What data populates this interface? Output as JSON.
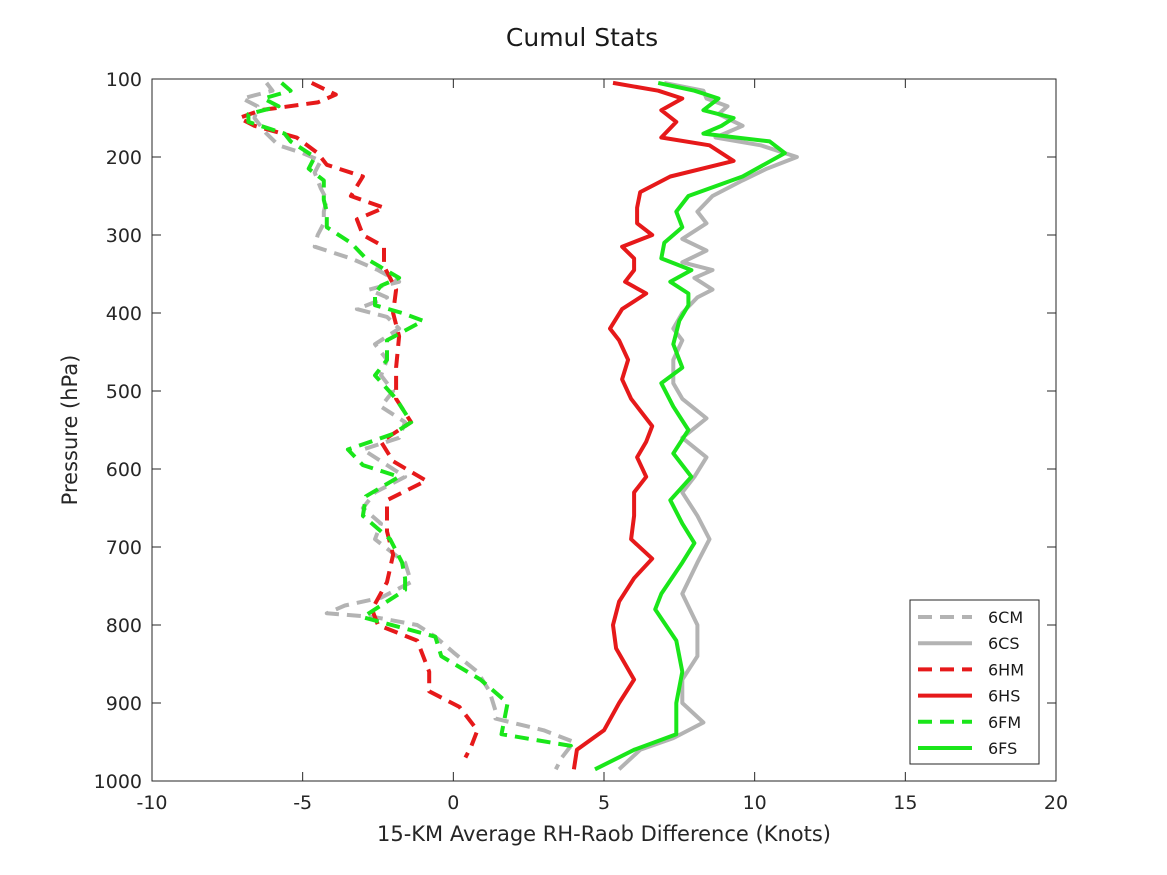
{
  "chart_data": {
    "type": "line",
    "title": "Cumul Stats",
    "xlabel": "15-KM Average RH-Raob Difference (Knots)",
    "ylabel": "Pressure (hPa)",
    "xlim": [
      -10,
      20
    ],
    "ylim": [
      100,
      1000
    ],
    "y_reversed": true,
    "xticks": [
      -10,
      -5,
      0,
      5,
      10,
      15,
      20
    ],
    "yticks": [
      100,
      200,
      300,
      400,
      500,
      600,
      700,
      800,
      900,
      1000
    ],
    "grid": false,
    "legend_position": "bottom-right",
    "series": [
      {
        "name": "6CM",
        "color": "#b3b3b3",
        "dashed": true,
        "points": [
          [
            -6.2,
            105
          ],
          [
            -6.0,
            115
          ],
          [
            -7.0,
            125
          ],
          [
            -6.5,
            135
          ],
          [
            -6.6,
            150
          ],
          [
            -6.2,
            170
          ],
          [
            -5.8,
            185
          ],
          [
            -5.0,
            195
          ],
          [
            -4.4,
            205
          ],
          [
            -4.6,
            220
          ],
          [
            -4.4,
            240
          ],
          [
            -4.2,
            255
          ],
          [
            -4.3,
            270
          ],
          [
            -4.3,
            285
          ],
          [
            -4.5,
            300
          ],
          [
            -4.6,
            315
          ],
          [
            -3.4,
            330
          ],
          [
            -2.5,
            345
          ],
          [
            -1.8,
            360
          ],
          [
            -2.8,
            370
          ],
          [
            -2.2,
            380
          ],
          [
            -3.2,
            395
          ],
          [
            -2.2,
            405
          ],
          [
            -1.8,
            420
          ],
          [
            -2.6,
            440
          ],
          [
            -2.2,
            460
          ],
          [
            -2.4,
            480
          ],
          [
            -2.0,
            500
          ],
          [
            -2.4,
            520
          ],
          [
            -1.6,
            540
          ],
          [
            -1.8,
            560
          ],
          [
            -3.0,
            575
          ],
          [
            -2.4,
            590
          ],
          [
            -1.6,
            610
          ],
          [
            -2.6,
            630
          ],
          [
            -3.0,
            650
          ],
          [
            -2.4,
            670
          ],
          [
            -2.6,
            690
          ],
          [
            -1.6,
            720
          ],
          [
            -1.4,
            745
          ],
          [
            -2.4,
            765
          ],
          [
            -3.6,
            775
          ],
          [
            -4.2,
            785
          ],
          [
            -2.6,
            790
          ],
          [
            -1.2,
            800
          ],
          [
            -0.6,
            815
          ],
          [
            0,
            835
          ],
          [
            0.8,
            860
          ],
          [
            1.2,
            885
          ],
          [
            1.4,
            910
          ],
          [
            1.4,
            920
          ],
          [
            3.0,
            935
          ],
          [
            4.0,
            950
          ],
          [
            3.6,
            970
          ],
          [
            3.4,
            985
          ]
        ]
      },
      {
        "name": "6CS",
        "color": "#b3b3b3",
        "dashed": false,
        "points": [
          [
            7.0,
            105
          ],
          [
            8.3,
            115
          ],
          [
            8.4,
            125
          ],
          [
            9.1,
            135
          ],
          [
            8.8,
            145
          ],
          [
            9.6,
            160
          ],
          [
            8.7,
            175
          ],
          [
            10.2,
            185
          ],
          [
            11.4,
            200
          ],
          [
            10.4,
            215
          ],
          [
            9.6,
            230
          ],
          [
            8.6,
            250
          ],
          [
            8.1,
            270
          ],
          [
            8.4,
            285
          ],
          [
            7.6,
            305
          ],
          [
            8.4,
            320
          ],
          [
            7.6,
            335
          ],
          [
            8.6,
            345
          ],
          [
            8.0,
            355
          ],
          [
            8.6,
            370
          ],
          [
            8.1,
            380
          ],
          [
            7.6,
            400
          ],
          [
            7.3,
            420
          ],
          [
            7.6,
            435
          ],
          [
            7.3,
            460
          ],
          [
            7.3,
            490
          ],
          [
            7.6,
            510
          ],
          [
            8.4,
            535
          ],
          [
            7.6,
            560
          ],
          [
            8.4,
            585
          ],
          [
            8.0,
            610
          ],
          [
            7.6,
            630
          ],
          [
            8.1,
            660
          ],
          [
            8.5,
            690
          ],
          [
            8.1,
            720
          ],
          [
            7.6,
            760
          ],
          [
            8.1,
            800
          ],
          [
            8.1,
            840
          ],
          [
            7.6,
            870
          ],
          [
            7.6,
            900
          ],
          [
            8.3,
            925
          ],
          [
            7.3,
            945
          ],
          [
            6.2,
            960
          ],
          [
            5.5,
            985
          ]
        ]
      },
      {
        "name": "6HM",
        "color": "#e6191a",
        "dashed": true,
        "points": [
          [
            -4.7,
            105
          ],
          [
            -3.9,
            120
          ],
          [
            -4.5,
            130
          ],
          [
            -6.4,
            140
          ],
          [
            -7.1,
            150
          ],
          [
            -6.6,
            160
          ],
          [
            -5.2,
            175
          ],
          [
            -4.5,
            195
          ],
          [
            -4.2,
            210
          ],
          [
            -3.0,
            225
          ],
          [
            -3.4,
            250
          ],
          [
            -2.3,
            265
          ],
          [
            -3.2,
            280
          ],
          [
            -3.0,
            300
          ],
          [
            -2.3,
            315
          ],
          [
            -2.3,
            340
          ],
          [
            -1.9,
            370
          ],
          [
            -2.0,
            400
          ],
          [
            -1.8,
            430
          ],
          [
            -1.9,
            470
          ],
          [
            -1.9,
            510
          ],
          [
            -1.4,
            540
          ],
          [
            -2.4,
            565
          ],
          [
            -2.0,
            590
          ],
          [
            -0.9,
            615
          ],
          [
            -2.2,
            640
          ],
          [
            -2.2,
            680
          ],
          [
            -2.0,
            710
          ],
          [
            -2.2,
            745
          ],
          [
            -2.7,
            780
          ],
          [
            -2.5,
            800
          ],
          [
            -1.2,
            820
          ],
          [
            -0.8,
            860
          ],
          [
            -0.8,
            885
          ],
          [
            0.2,
            905
          ],
          [
            0.8,
            935
          ],
          [
            0.6,
            955
          ],
          [
            0.4,
            970
          ]
        ]
      },
      {
        "name": "6HS",
        "color": "#e6191a",
        "dashed": false,
        "points": [
          [
            5.3,
            105
          ],
          [
            6.8,
            115
          ],
          [
            7.6,
            125
          ],
          [
            6.9,
            140
          ],
          [
            7.4,
            155
          ],
          [
            6.9,
            175
          ],
          [
            8.5,
            185
          ],
          [
            9.3,
            205
          ],
          [
            7.2,
            225
          ],
          [
            6.2,
            245
          ],
          [
            6.1,
            265
          ],
          [
            6.1,
            285
          ],
          [
            6.6,
            300
          ],
          [
            5.6,
            315
          ],
          [
            6.0,
            330
          ],
          [
            6.0,
            345
          ],
          [
            5.7,
            360
          ],
          [
            6.4,
            375
          ],
          [
            5.6,
            395
          ],
          [
            5.2,
            420
          ],
          [
            5.5,
            435
          ],
          [
            5.8,
            460
          ],
          [
            5.6,
            485
          ],
          [
            5.9,
            510
          ],
          [
            6.6,
            545
          ],
          [
            6.4,
            565
          ],
          [
            6.1,
            585
          ],
          [
            6.4,
            610
          ],
          [
            6.0,
            630
          ],
          [
            6.0,
            660
          ],
          [
            5.9,
            690
          ],
          [
            6.6,
            715
          ],
          [
            6.0,
            740
          ],
          [
            5.5,
            770
          ],
          [
            5.3,
            800
          ],
          [
            5.4,
            830
          ],
          [
            6.0,
            870
          ],
          [
            5.5,
            900
          ],
          [
            5.0,
            935
          ],
          [
            4.1,
            960
          ],
          [
            4.0,
            985
          ]
        ]
      },
      {
        "name": "6FM",
        "color": "#1ae61a",
        "dashed": true,
        "points": [
          [
            -5.7,
            105
          ],
          [
            -5.4,
            115
          ],
          [
            -6.3,
            125
          ],
          [
            -5.8,
            135
          ],
          [
            -6.8,
            145
          ],
          [
            -6.8,
            155
          ],
          [
            -5.6,
            170
          ],
          [
            -5.4,
            180
          ],
          [
            -4.6,
            200
          ],
          [
            -4.8,
            215
          ],
          [
            -4.3,
            230
          ],
          [
            -4.3,
            255
          ],
          [
            -4.2,
            270
          ],
          [
            -4.2,
            290
          ],
          [
            -3.4,
            310
          ],
          [
            -2.9,
            330
          ],
          [
            -1.8,
            355
          ],
          [
            -2.4,
            365
          ],
          [
            -2.6,
            375
          ],
          [
            -2.6,
            390
          ],
          [
            -1.7,
            400
          ],
          [
            -1.0,
            410
          ],
          [
            -2.2,
            435
          ],
          [
            -2.2,
            460
          ],
          [
            -2.6,
            480
          ],
          [
            -1.9,
            510
          ],
          [
            -1.4,
            540
          ],
          [
            -2.0,
            555
          ],
          [
            -3.5,
            575
          ],
          [
            -3.0,
            595
          ],
          [
            -1.8,
            610
          ],
          [
            -2.9,
            635
          ],
          [
            -3.0,
            660
          ],
          [
            -2.1,
            690
          ],
          [
            -1.7,
            720
          ],
          [
            -1.6,
            740
          ],
          [
            -1.6,
            755
          ],
          [
            -2.2,
            770
          ],
          [
            -3.0,
            790
          ],
          [
            -0.6,
            815
          ],
          [
            -0.4,
            840
          ],
          [
            0.9,
            870
          ],
          [
            1.8,
            900
          ],
          [
            1.6,
            940
          ],
          [
            3.9,
            955
          ],
          [
            4.0,
            965
          ]
        ]
      },
      {
        "name": "6FS",
        "color": "#1ae61a",
        "dashed": false,
        "points": [
          [
            6.8,
            105
          ],
          [
            8.0,
            115
          ],
          [
            8.8,
            125
          ],
          [
            8.3,
            140
          ],
          [
            9.3,
            150
          ],
          [
            8.9,
            160
          ],
          [
            8.3,
            170
          ],
          [
            10.5,
            180
          ],
          [
            11.0,
            195
          ],
          [
            9.6,
            225
          ],
          [
            7.8,
            250
          ],
          [
            7.4,
            270
          ],
          [
            7.6,
            290
          ],
          [
            7.0,
            310
          ],
          [
            6.9,
            330
          ],
          [
            7.9,
            345
          ],
          [
            7.2,
            360
          ],
          [
            7.8,
            375
          ],
          [
            7.8,
            390
          ],
          [
            7.5,
            410
          ],
          [
            7.3,
            440
          ],
          [
            7.6,
            470
          ],
          [
            6.9,
            490
          ],
          [
            7.3,
            520
          ],
          [
            7.8,
            550
          ],
          [
            7.3,
            580
          ],
          [
            7.9,
            610
          ],
          [
            7.2,
            640
          ],
          [
            7.6,
            670
          ],
          [
            8.0,
            695
          ],
          [
            7.6,
            720
          ],
          [
            6.9,
            760
          ],
          [
            6.7,
            780
          ],
          [
            7.4,
            820
          ],
          [
            7.6,
            860
          ],
          [
            7.4,
            900
          ],
          [
            7.4,
            940
          ],
          [
            6.0,
            960
          ],
          [
            4.7,
            985
          ]
        ]
      }
    ]
  }
}
